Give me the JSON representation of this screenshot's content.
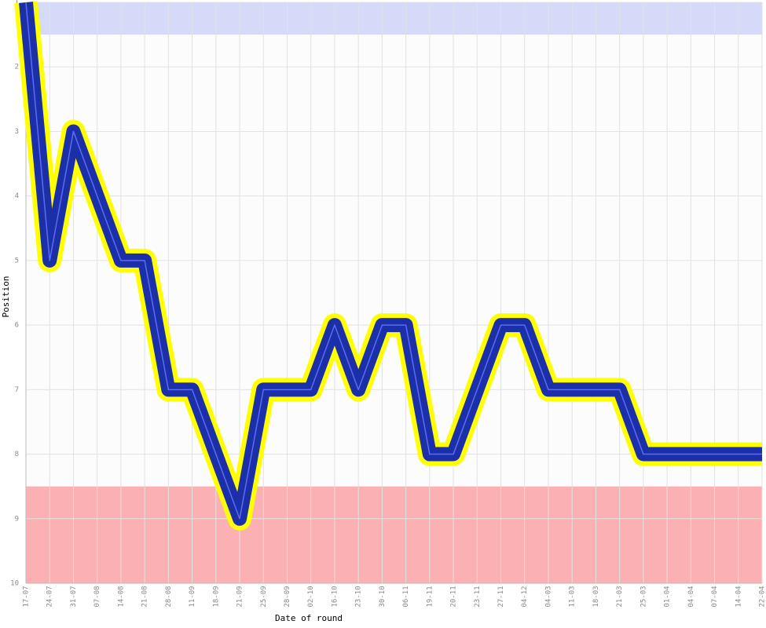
{
  "chart_data": {
    "type": "line",
    "x_label": "Date of round",
    "y_label": "Position",
    "categories": [
      "17-07",
      "24-07",
      "31-07",
      "07-08",
      "14-08",
      "21-08",
      "28-08",
      "11-09",
      "18-09",
      "21-09",
      "25-09",
      "28-09",
      "02-10",
      "16-10",
      "23-10",
      "30-10",
      "06-11",
      "19-11",
      "20-11",
      "23-11",
      "27-11",
      "04-12",
      "04-03",
      "11-03",
      "18-03",
      "21-03",
      "25-03",
      "01-04",
      "04-04",
      "07-04",
      "14-04",
      "22-04"
    ],
    "series": [
      {
        "name": "Position",
        "color": "#1a2fa8",
        "outline": "#ffff00",
        "values": [
          1,
          5,
          3,
          4,
          5,
          5,
          7,
          7,
          8,
          9,
          7,
          7,
          7,
          6,
          7,
          6,
          6,
          8,
          8,
          7,
          6,
          6,
          7,
          7,
          7,
          7,
          8,
          8,
          8,
          8,
          8,
          8
        ]
      }
    ],
    "ylim": [
      1,
      10
    ],
    "yticks": [
      1,
      2,
      3,
      4,
      5,
      6,
      7,
      8,
      9,
      10
    ],
    "inverted": true,
    "grid": true,
    "bands": [
      {
        "from": 1,
        "to": 1.5,
        "color": "#d4daf7"
      },
      {
        "from": 8.5,
        "to": 10,
        "color": "#fbb0b3"
      }
    ]
  }
}
